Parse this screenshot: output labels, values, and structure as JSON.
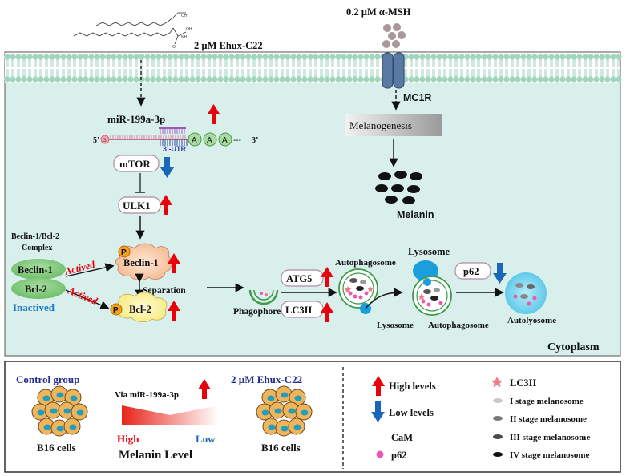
{
  "header": {
    "ehux_label": "2 µM Ehux-C22",
    "msh_label": "0.2 µM α-MSH"
  },
  "pathway": {
    "mirna": "miR-199a-3p",
    "five_prime": "5’",
    "three_prime": "3’",
    "utr": "3’-UTR",
    "cap": "G",
    "polya": [
      "A",
      "A",
      "A"
    ],
    "tail": "---",
    "mtor": "mTOR",
    "ulk1": "ULK1",
    "complex_title": "Beclin-1/Bcl-2",
    "complex_subtitle": "Complex",
    "beclin_ellipse": "Beclin-1",
    "bcl2_ellipse": "Bcl-2",
    "inactived": "Inactived",
    "actived_top": "Actived",
    "actived_bottom": "Actived",
    "beclin_active": "Beclin-1",
    "bcl2_active": "Bcl-2",
    "phospho": "P",
    "separation": "Separation",
    "phagophore": "Phagophore",
    "atg5": "ATG5",
    "lc3ii": "LC3II",
    "autophagosome_1": "Autophagosome",
    "lysosome_top": "Lysosome",
    "lysosome_bottom": "Lysosome",
    "autophagosome_2": "Autophagosome",
    "p62": "p62",
    "autolysosome": "Autolyosome",
    "mc1r": "MC1R",
    "melanogenesis": "Melanogenesis",
    "melanin": "Melanin",
    "cytoplasm": "Cytoplasm"
  },
  "legend": {
    "control_group": "Control group",
    "b16_left": "B16  cells",
    "via_mirna": "Via miR-199a-3p",
    "high": "High",
    "low": "Low",
    "melanin_level": "Melanin Level",
    "ehux_group": "2 µM Ehux-C22",
    "b16_right": "B16  cells",
    "high_levels": "High levels",
    "low_levels": "Low levels",
    "cam": "CaM",
    "p62": "p62",
    "lc3ii": "LC3II",
    "stage1": "I stage melanosome",
    "stage2": "II stage melanosome",
    "stage3": "III stage melanosome",
    "stage4": "IV stage melanosome"
  },
  "colors": {
    "cytoplasm": "#d9efec",
    "membrane": "#9fd6bd",
    "up_arrow": "#e8000b",
    "down_arrow": "#1a66b8",
    "actived_text": "#e8000b",
    "inactived_text": "#1a7ac8",
    "control_title": "#1f2d8c",
    "ehux_title": "#1f2d8c",
    "cell": "#f0b45a",
    "nucleus": "#1f9fc0",
    "lc3ii": "#f07a8a",
    "p62": "#e85ab0",
    "cam": "#e07820"
  }
}
